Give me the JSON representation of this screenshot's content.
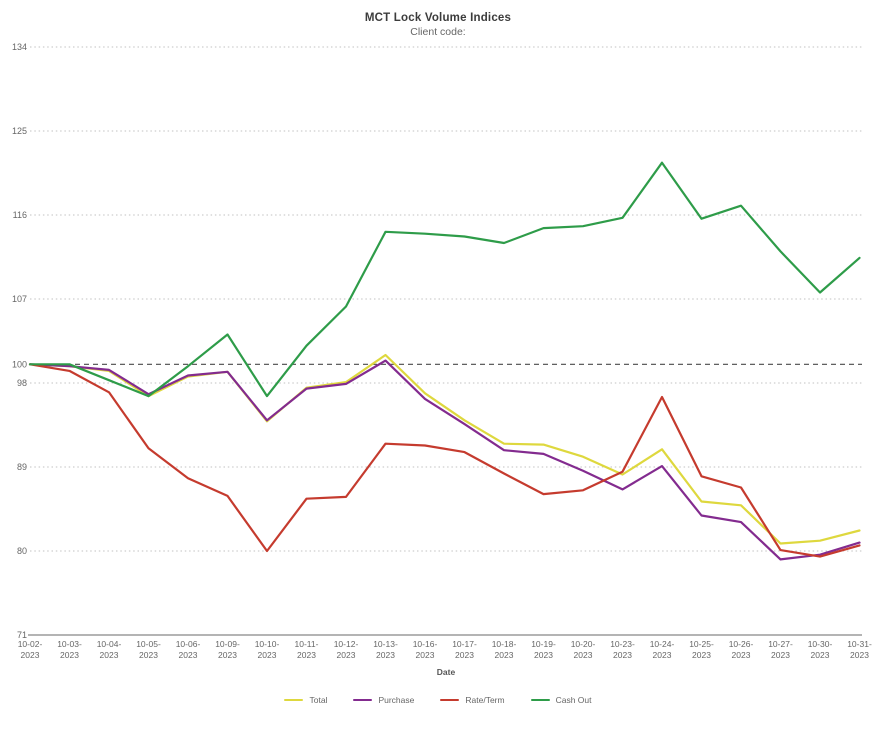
{
  "header": {
    "title": "MCT Lock Volume Indices",
    "subtitle": "Client code:"
  },
  "chart_data": {
    "type": "line",
    "title": "MCT Lock Volume Indices",
    "subtitle": "Client code:",
    "xlabel": "Date",
    "ylabel": "",
    "ylim": [
      71,
      134
    ],
    "y_ticks": [
      134,
      125,
      116,
      107,
      100,
      98,
      89,
      80,
      71
    ],
    "reference_line": 100,
    "grid": "horizontal-dotted",
    "legend_position": "bottom",
    "categories": [
      "10-02-2023",
      "10-03-2023",
      "10-04-2023",
      "10-05-2023",
      "10-06-2023",
      "10-09-2023",
      "10-10-2023",
      "10-11-2023",
      "10-12-2023",
      "10-13-2023",
      "10-16-2023",
      "10-17-2023",
      "10-18-2023",
      "10-19-2023",
      "10-20-2023",
      "10-23-2023",
      "10-24-2023",
      "10-25-2023",
      "10-26-2023",
      "10-27-2023",
      "10-30-2023",
      "10-31-2023"
    ],
    "series": [
      {
        "name": "Total",
        "color": "#ded83e",
        "values": [
          100,
          99.8,
          99.3,
          96.6,
          98.7,
          99.2,
          93.9,
          97.5,
          98.1,
          101.0,
          96.9,
          94.0,
          91.5,
          91.4,
          90.1,
          88.2,
          90.9,
          85.3,
          84.9,
          80.8,
          81.1,
          82.2
        ]
      },
      {
        "name": "Purchase",
        "color": "#832b8f",
        "values": [
          100,
          99.8,
          99.4,
          96.8,
          98.8,
          99.2,
          94.0,
          97.4,
          97.9,
          100.4,
          96.3,
          93.6,
          90.8,
          90.4,
          88.6,
          86.6,
          89.1,
          83.8,
          83.1,
          79.1,
          79.6,
          80.9
        ]
      },
      {
        "name": "Rate/Term",
        "color": "#c53b2e",
        "values": [
          100,
          99.3,
          97.0,
          91.0,
          87.8,
          85.9,
          80.0,
          85.6,
          85.8,
          91.5,
          91.3,
          90.6,
          88.3,
          86.1,
          86.5,
          88.5,
          96.5,
          88.0,
          86.8,
          80.1,
          79.4,
          80.6
        ]
      },
      {
        "name": "Cash Out",
        "color": "#2e9c49",
        "values": [
          100,
          100,
          98.3,
          96.6,
          99.8,
          103.2,
          96.6,
          102.0,
          106.2,
          114.2,
          114.0,
          113.7,
          113.0,
          114.6,
          114.8,
          115.7,
          121.6,
          115.6,
          117.0,
          112.1,
          107.7,
          111.4
        ]
      }
    ],
    "style": {
      "grid_color": "#c2c2c2",
      "reference_line_color": "#4a4a4a",
      "axis_line_color": "#b4b4b4",
      "tick_text_color": "#666666",
      "title_color": "#3c3c3c",
      "subtitle_color": "#666666"
    }
  }
}
